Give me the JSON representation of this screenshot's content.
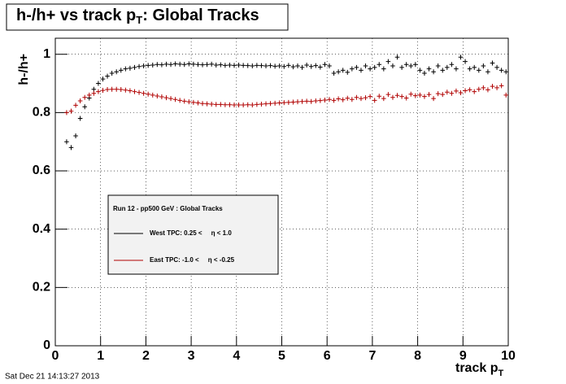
{
  "chart_data": {
    "type": "scatter",
    "title": {
      "text": "h-/h+ vs track p",
      "subscript": "T",
      "rest": ": Global Tracks"
    },
    "ylabel": "h-/h+",
    "xlabel": {
      "text": "track p",
      "subscript": "T"
    },
    "footer": "Sat Dec 21 14:13:27 2013",
    "legend_title": "Run 12 - pp500 GeV : Global Tracks",
    "grid": true,
    "xlim": [
      0,
      10
    ],
    "xticks": [
      0,
      1,
      2,
      3,
      4,
      5,
      6,
      7,
      8,
      9,
      10
    ],
    "ylim": [
      0,
      1.055
    ],
    "yticks": [
      0,
      0.2,
      0.4,
      0.6,
      0.8,
      1
    ],
    "bin_width": 0.1,
    "x": [
      0.25,
      0.35,
      0.45,
      0.55,
      0.65,
      0.75,
      0.85,
      0.95,
      1.05,
      1.15,
      1.25,
      1.35,
      1.45,
      1.55,
      1.65,
      1.75,
      1.85,
      1.95,
      2.05,
      2.15,
      2.25,
      2.35,
      2.45,
      2.55,
      2.65,
      2.75,
      2.85,
      2.95,
      3.05,
      3.15,
      3.25,
      3.35,
      3.45,
      3.55,
      3.65,
      3.75,
      3.85,
      3.95,
      4.05,
      4.15,
      4.25,
      4.35,
      4.45,
      4.55,
      4.65,
      4.75,
      4.85,
      4.95,
      5.05,
      5.15,
      5.25,
      5.35,
      5.45,
      5.55,
      5.65,
      5.75,
      5.85,
      5.95,
      6.05,
      6.15,
      6.25,
      6.35,
      6.45,
      6.55,
      6.65,
      6.75,
      6.85,
      6.95,
      7.05,
      7.15,
      7.25,
      7.35,
      7.45,
      7.55,
      7.65,
      7.75,
      7.85,
      7.95,
      8.05,
      8.15,
      8.25,
      8.35,
      8.45,
      8.55,
      8.65,
      8.75,
      8.85,
      8.95,
      9.05,
      9.15,
      9.25,
      9.35,
      9.45,
      9.55,
      9.65,
      9.75,
      9.85,
      9.95
    ],
    "series": [
      {
        "name": "West TPC: 0.25 <     η < 1.0",
        "color": "#000000",
        "values": [
          0.7,
          0.68,
          0.72,
          0.78,
          0.82,
          0.85,
          0.88,
          0.9,
          0.915,
          0.925,
          0.935,
          0.94,
          0.945,
          0.95,
          0.952,
          0.955,
          0.958,
          0.96,
          0.962,
          0.963,
          0.965,
          0.964,
          0.966,
          0.965,
          0.967,
          0.966,
          0.965,
          0.967,
          0.966,
          0.965,
          0.964,
          0.965,
          0.966,
          0.963,
          0.964,
          0.962,
          0.963,
          0.962,
          0.963,
          0.962,
          0.961,
          0.96,
          0.962,
          0.961,
          0.96,
          0.961,
          0.959,
          0.96,
          0.958,
          0.962,
          0.957,
          0.96,
          0.955,
          0.963,
          0.958,
          0.961,
          0.956,
          0.965,
          0.96,
          0.935,
          0.94,
          0.945,
          0.938,
          0.95,
          0.955,
          0.945,
          0.96,
          0.95,
          0.955,
          0.965,
          0.95,
          0.975,
          0.96,
          0.99,
          0.955,
          0.965,
          0.96,
          0.965,
          0.945,
          0.935,
          0.95,
          0.94,
          0.96,
          0.945,
          0.955,
          0.965,
          0.95,
          0.99,
          0.975,
          0.95,
          0.955,
          0.945,
          0.96,
          0.94,
          0.97,
          0.955,
          0.945,
          0.94
        ]
      },
      {
        "name": "East TPC: -1.0 <     η < -0.25",
        "color": "#b00000",
        "values": [
          0.8,
          0.805,
          0.825,
          0.84,
          0.852,
          0.86,
          0.866,
          0.872,
          0.876,
          0.879,
          0.88,
          0.88,
          0.879,
          0.877,
          0.875,
          0.872,
          0.869,
          0.866,
          0.863,
          0.86,
          0.857,
          0.854,
          0.851,
          0.848,
          0.845,
          0.842,
          0.839,
          0.837,
          0.835,
          0.833,
          0.831,
          0.83,
          0.829,
          0.828,
          0.828,
          0.827,
          0.827,
          0.826,
          0.826,
          0.826,
          0.827,
          0.826,
          0.828,
          0.829,
          0.83,
          0.831,
          0.832,
          0.833,
          0.834,
          0.835,
          0.836,
          0.837,
          0.838,
          0.839,
          0.838,
          0.84,
          0.841,
          0.843,
          0.845,
          0.842,
          0.847,
          0.844,
          0.849,
          0.845,
          0.852,
          0.848,
          0.851,
          0.855,
          0.842,
          0.856,
          0.848,
          0.862,
          0.852,
          0.859,
          0.855,
          0.85,
          0.863,
          0.858,
          0.86,
          0.855,
          0.862,
          0.848,
          0.865,
          0.862,
          0.87,
          0.866,
          0.874,
          0.868,
          0.875,
          0.878,
          0.872,
          0.88,
          0.885,
          0.878,
          0.89,
          0.885,
          0.892,
          0.86
        ]
      }
    ]
  }
}
